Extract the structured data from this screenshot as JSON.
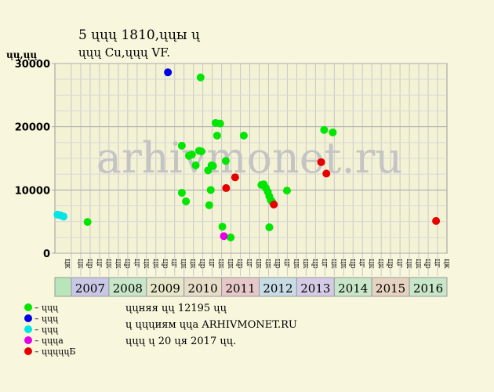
{
  "chart_data": {
    "type": "scatter",
    "title": [
      "5 ųųų 1810,ųųы ų",
      "ųųų Cu,ųųų VF."
    ],
    "y_label": "ųų,ųų",
    "watermark": "arhivmonet.ru",
    "xlim": [
      2006.56,
      2017.0
    ],
    "ylim": [
      0,
      30000
    ],
    "yticks": [
      0,
      10000,
      20000,
      30000
    ],
    "grid": true,
    "column_labels": [
      "цк",
      "цк",
      "цр",
      "цг",
      "цк",
      "цк",
      "цр",
      "цг",
      "цк",
      "цк",
      "цр",
      "цг",
      "цк",
      "цк",
      "цр",
      "цг",
      "цк",
      "цк",
      "цр",
      "цг",
      "цк",
      "цк",
      "цр",
      "цг",
      "цк",
      "цк",
      "цр",
      "цг",
      "цк",
      "цк",
      "цр",
      "цг",
      "цк",
      "цк",
      "цр",
      "цг",
      "цк",
      "цк",
      "цр",
      "цг",
      "цк"
    ],
    "year_labels": [
      "2007",
      "2008",
      "2009",
      "2010",
      "2011",
      "2012",
      "2013",
      "2014",
      "2015",
      "2016"
    ],
    "year_colors": [
      "#c8c8e6",
      "#c8e6c8",
      "#e6e6c8",
      "#e6dcc8",
      "#e6c8c8",
      "#c8dce6",
      "#d4cce6",
      "#c8e6c8",
      "#e6d2c0",
      "#c8e6c8"
    ],
    "series": [
      {
        "name": "– ųųų",
        "color": "#00e600",
        "x": [
          2007.43,
          2010.44,
          2009.94,
          2009.94,
          2010.05,
          2010.13,
          2010.21,
          2010.31,
          2010.4,
          2010.46,
          2010.64,
          2010.73,
          2010.77,
          2010.71,
          2010.67,
          2010.84,
          2010.96,
          2010.88,
          2011.02,
          2011.11,
          2011.24,
          2011.59,
          2012.06,
          2012.12,
          2012.18,
          2012.23,
          2012.27,
          2012.31,
          2012.35,
          2012.27,
          2012.74,
          2013.73,
          2013.96
        ],
        "values": [
          4950,
          27800,
          17000,
          9550,
          8200,
          15400,
          15600,
          13900,
          16200,
          16100,
          13100,
          13900,
          13800,
          10000,
          7600,
          20600,
          20500,
          18600,
          4200,
          14600,
          2500,
          18600,
          10800,
          10900,
          10300,
          9700,
          9000,
          8400,
          8100,
          4100,
          9900,
          19500,
          19100
        ]
      },
      {
        "name": "– ųųų",
        "color": "#0000e6",
        "x": [
          2009.57
        ],
        "values": [
          28600
        ]
      },
      {
        "name": "– ųųų",
        "color": "#00e6e6",
        "x": [
          2006.63,
          2006.71,
          2006.79
        ],
        "values": [
          6100,
          6000,
          5800
        ]
      },
      {
        "name": "– ųųųа",
        "color": "#e600e6",
        "x": [
          2011.06
        ],
        "values": [
          2700
        ]
      },
      {
        "name": "– ųųųųųБ",
        "color": "#e60000",
        "x": [
          2011.12,
          2011.36,
          2012.39,
          2013.65,
          2013.79,
          2016.71
        ],
        "values": [
          10300,
          12000,
          7700,
          14400,
          12600,
          5100
        ]
      }
    ],
    "footer": [
      "ųųняя ųų 12195 ųų",
      "ų ųųųиям ųųа ARHIVMONET.RU",
      "ųųų ų 20 ųя 2017 ųų."
    ]
  }
}
